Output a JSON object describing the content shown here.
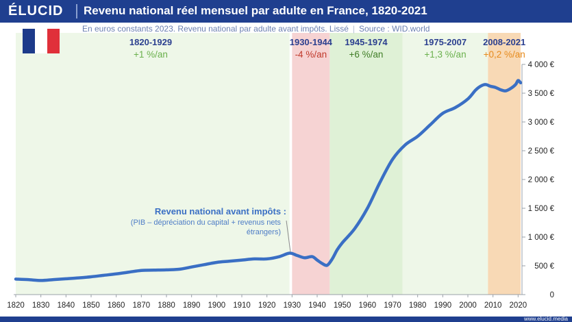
{
  "header": {
    "logo": "ÉLUCID",
    "title": "Revenu national réel mensuel par adulte en France, 1820-2021",
    "subtitle": "En euros constants 2023. Revenu national par adulte avant impôts. Lissé",
    "source": "Source : WID.world"
  },
  "flag": {
    "colors": [
      "#1c3a8a",
      "#ffffff",
      "#e0303a"
    ]
  },
  "footer": {
    "url": "www.elucid.media"
  },
  "annotation": {
    "title": "Revenu national avant impôts :",
    "text": "(PIB – dépréciation du capital + revenus nets étrangers)"
  },
  "chart_data": {
    "type": "line",
    "title": "Revenu national réel mensuel par adulte en France, 1820-2021",
    "xlim": [
      1820,
      2021
    ],
    "ylim": [
      0,
      4000
    ],
    "x_ticks": [
      1820,
      1830,
      1840,
      1850,
      1860,
      1870,
      1880,
      1890,
      1900,
      1910,
      1920,
      1930,
      1940,
      1950,
      1960,
      1970,
      1980,
      1990,
      2000,
      2010,
      2020
    ],
    "y_ticks": [
      0,
      500,
      1000,
      1500,
      2000,
      2500,
      3000,
      3500,
      4000
    ],
    "y_tick_labels": [
      "0",
      "500 €",
      "1 000 €",
      "1 500 €",
      "2 000 €",
      "2 500 €",
      "3 000 €",
      "3 500 €",
      "4 000 €"
    ],
    "grid": false,
    "line_color": "#3a6fc4",
    "periods": [
      {
        "label": "1820-1929",
        "rate": "+1 %/an",
        "start": 1820,
        "end": 1929,
        "fill": "#eef7e8",
        "rate_color": "#6ab04c"
      },
      {
        "label": "1930-1944",
        "rate": "-4 %/an",
        "start": 1930,
        "end": 1945,
        "fill": "#f6d3d3",
        "rate_color": "#c0392b"
      },
      {
        "label": "1945-1974",
        "rate": "+6 %/an",
        "start": 1945,
        "end": 1974,
        "fill": "#dff1d6",
        "rate_color": "#3f7d26"
      },
      {
        "label": "1975-2007",
        "rate": "+1,3 %/an",
        "start": 1974,
        "end": 2008,
        "fill": "#eef7e8",
        "rate_color": "#6ab04c"
      },
      {
        "label": "2008-2021",
        "rate": "+0,2 %/an",
        "start": 2008,
        "end": 2021,
        "fill": "#f8d9b5",
        "rate_color": "#e68a1c"
      }
    ],
    "series": [
      {
        "x": [
          1820,
          1825,
          1830,
          1835,
          1840,
          1845,
          1850,
          1855,
          1860,
          1865,
          1870,
          1875,
          1880,
          1885,
          1890,
          1895,
          1900,
          1905,
          1910,
          1915,
          1920,
          1925,
          1929,
          1932,
          1935,
          1938,
          1940,
          1942,
          1944,
          1946,
          1948,
          1950,
          1955,
          1960,
          1965,
          1970,
          1975,
          1980,
          1985,
          1990,
          1995,
          2000,
          2003,
          2005,
          2007,
          2009,
          2011,
          2013,
          2015,
          2017,
          2019,
          2020,
          2021
        ],
        "y": [
          270,
          260,
          245,
          260,
          275,
          290,
          310,
          335,
          360,
          390,
          420,
          425,
          430,
          440,
          480,
          520,
          560,
          580,
          600,
          620,
          620,
          660,
          720,
          680,
          640,
          660,
          600,
          540,
          510,
          620,
          780,
          900,
          1150,
          1500,
          1950,
          2350,
          2600,
          2750,
          2950,
          3150,
          3250,
          3400,
          3550,
          3620,
          3650,
          3620,
          3600,
          3560,
          3540,
          3580,
          3650,
          3720,
          3680
        ]
      }
    ]
  }
}
